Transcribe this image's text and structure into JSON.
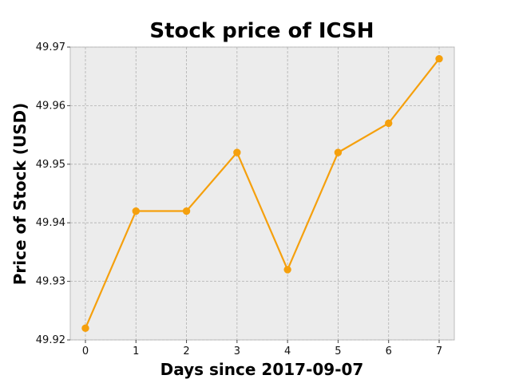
{
  "chart_data": {
    "type": "line",
    "title": "Stock price of ICSH",
    "xlabel": "Days since 2017-09-07",
    "ylabel": "Price of Stock (USD)",
    "x": [
      0,
      1,
      2,
      3,
      4,
      5,
      6,
      7
    ],
    "x_ticks": [
      "0",
      "1",
      "2",
      "3",
      "4",
      "5",
      "6",
      "7"
    ],
    "y_ticks": [
      "49.92",
      "49.93",
      "49.94",
      "49.95",
      "49.96",
      "49.97"
    ],
    "xlim": [
      -0.3,
      7.3
    ],
    "ylim": [
      49.92,
      49.97
    ],
    "grid": true,
    "series": [
      {
        "values": [
          49.922,
          49.942,
          49.942,
          49.952,
          49.932,
          49.952,
          49.957,
          49.968
        ],
        "color": "#f5a00d"
      }
    ],
    "colors": {
      "plot_background": "#ececec",
      "grid": "#b0b0b0",
      "axes": "#bdbdbd"
    }
  }
}
